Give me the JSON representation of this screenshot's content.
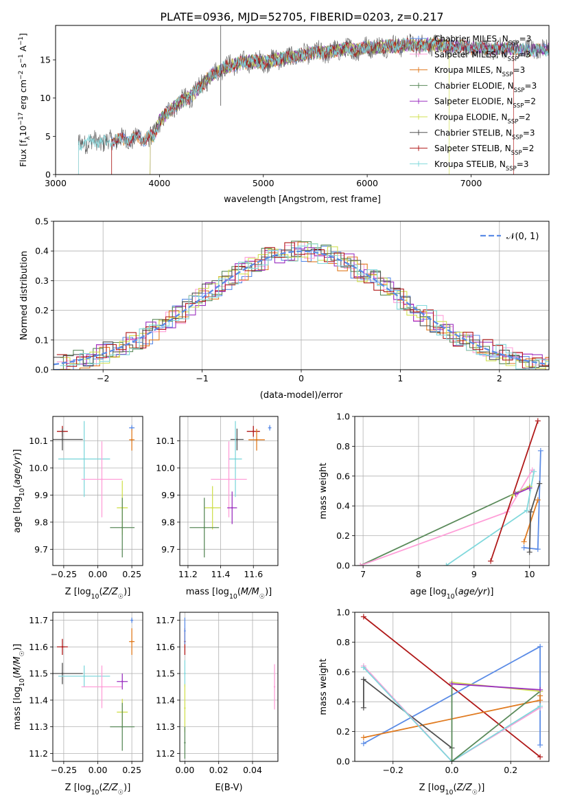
{
  "figure_title": "PLATE=0936, MJD=52705, FIBERID=0203, z=0.217",
  "colors": {
    "chabrier_miles": "#5a8be6",
    "salpeter_miles": "#ff9ed8",
    "kroupa_miles": "#e07a1f",
    "chabrier_elodie": "#5a8a5a",
    "salpeter_elodie": "#9b30c0",
    "kroupa_elodie": "#d0e050",
    "chabrier_stelib": "#505050",
    "salpeter_stelib": "#b01818",
    "kroupa_stelib": "#80d8dc",
    "gauss": "#5a8be6",
    "grid": "#b0b0b0"
  },
  "chart_data": [
    {
      "id": "spectrum",
      "type": "line",
      "title": "",
      "xlabel": "wavelength [Angstrom, rest frame]",
      "ylabel": "Flux [f_λ10^-17 erg cm^-2 s^-1 A^-1]",
      "xlim": [
        3000,
        7750
      ],
      "ylim": [
        0,
        19.5
      ],
      "xticks": [
        3000,
        4000,
        5000,
        6000,
        7000
      ],
      "yticks": [
        0,
        5,
        10,
        15
      ],
      "grid": false,
      "legend_position": "top-right",
      "legend": [
        {
          "label": "Chabrier MILES, N_SSP=3",
          "base": "Chabrier MILES, N",
          "sub": "SSP",
          "tail": "=3",
          "color_key": "chabrier_miles"
        },
        {
          "label": "Salpeter MILES, N_SSP=3",
          "base": "Salpeter MILES, N",
          "sub": "SSP",
          "tail": "=3",
          "color_key": "salpeter_miles"
        },
        {
          "label": "Kroupa MILES, N_SSP=3",
          "base": "Kroupa MILES, N",
          "sub": "SSP",
          "tail": "=3",
          "color_key": "kroupa_miles"
        },
        {
          "label": "Chabrier ELODIE, N_SSP=3",
          "base": "Chabrier ELODIE, N",
          "sub": "SSP",
          "tail": "=3",
          "color_key": "chabrier_elodie"
        },
        {
          "label": "Salpeter ELODIE, N_SSP=2",
          "base": "Salpeter ELODIE, N",
          "sub": "SSP",
          "tail": "=2",
          "color_key": "salpeter_elodie"
        },
        {
          "label": "Kroupa ELODIE, N_SSP=2",
          "base": "Kroupa ELODIE, N",
          "sub": "SSP",
          "tail": "=2",
          "color_key": "kroupa_elodie"
        },
        {
          "label": "Chabrier STELIB, N_SSP=3",
          "base": "Chabrier STELIB, N",
          "sub": "SSP",
          "tail": "=3",
          "color_key": "chabrier_stelib"
        },
        {
          "label": "Salpeter STELIB, N_SSP=2",
          "base": "Salpeter STELIB, N",
          "sub": "SSP",
          "tail": "=2",
          "color_key": "salpeter_stelib"
        },
        {
          "label": "Kroupa STELIB, N_SSP=3",
          "base": "Kroupa STELIB, N",
          "sub": "SSP",
          "tail": "=3",
          "color_key": "kroupa_stelib"
        }
      ],
      "continuum": {
        "x": [
          3220,
          3300,
          3400,
          3500,
          3560,
          3640,
          3700,
          3800,
          3850,
          3900,
          3950,
          4000,
          4100,
          4200,
          4300,
          4400,
          4500,
          4600,
          4700,
          4800,
          4900,
          5000,
          5100,
          5200,
          5300,
          5400,
          5500,
          5600,
          5700,
          5800,
          5900,
          6000,
          6100,
          6200,
          6300,
          6400,
          6500,
          6600,
          6700,
          6800,
          6900,
          7000,
          7100,
          7200,
          7300,
          7400,
          7500,
          7600,
          7750
        ],
        "y": [
          4.0,
          4.3,
          4.3,
          4.2,
          4.5,
          4.7,
          4.5,
          5.0,
          4.5,
          4.9,
          5.0,
          7.0,
          8.4,
          9.5,
          10.2,
          11.6,
          13.0,
          13.9,
          14.3,
          14.6,
          14.8,
          14.7,
          15.0,
          15.2,
          15.4,
          15.6,
          16.0,
          15.9,
          16.2,
          16.5,
          16.2,
          16.8,
          16.7,
          16.9,
          16.8,
          17.0,
          16.9,
          17.1,
          17.0,
          16.6,
          16.8,
          16.5,
          16.6,
          16.3,
          16.5,
          16.4,
          16.3,
          16.2,
          16.3
        ]
      },
      "model_start": {
        "chabrier_miles": 3540,
        "salpeter_miles": 3540,
        "kroupa_miles": 3540,
        "chabrier_elodie": 3910,
        "salpeter_elodie": 3910,
        "kroupa_elodie": 3910,
        "chabrier_stelib": 3220,
        "salpeter_stelib": 3540,
        "kroupa_stelib": 3220
      },
      "model_end": {
        "kroupa_elodie": 6790,
        "salpeter_stelib": 7410
      }
    },
    {
      "id": "residuals",
      "type": "bar",
      "xlabel": "(data-model)/error",
      "ylabel": "Normed distribution",
      "xlim": [
        -2.5,
        2.5
      ],
      "ylim": [
        0,
        0.5
      ],
      "xticks": [
        -2,
        -1,
        0,
        1,
        2
      ],
      "yticks": [
        0.0,
        0.1,
        0.2,
        0.3,
        0.4,
        0.5
      ],
      "grid": true,
      "bin_width": 0.1,
      "legend_position": "top-right",
      "legend": [
        {
          "label": "𝒩(0, 1)",
          "color_key": "gauss",
          "style": "dashed"
        }
      ],
      "gaussian": {
        "mean": 0,
        "sigma": 1
      }
    },
    {
      "id": "age_vs_Z",
      "type": "scatter",
      "xlabel": "Z [log10(Z/Z☉)]",
      "ylabel": "age  [log10(age/yr)]",
      "xlim": [
        -0.33,
        0.33
      ],
      "ylim": [
        9.64,
        10.19
      ],
      "xticks": [
        -0.25,
        0.0,
        0.25
      ],
      "xticklabels": [
        "−0.25",
        "0.00",
        "0.25"
      ],
      "yticks": [
        9.7,
        9.8,
        9.9,
        10.0,
        10.1
      ],
      "grid": true,
      "points": [
        {
          "x": -0.26,
          "y": 10.135,
          "xerr": 0.04,
          "yerr": 0.02,
          "color_key": "salpeter_stelib"
        },
        {
          "x": -0.26,
          "y": 10.105,
          "xerr": 0.15,
          "yerr": 0.04,
          "color_key": "chabrier_stelib"
        },
        {
          "x": 0.25,
          "y": 10.148,
          "xerr": 0.02,
          "yerr": 0.01,
          "color_key": "chabrier_miles"
        },
        {
          "x": 0.25,
          "y": 10.104,
          "xerr": 0.02,
          "yerr": 0.04,
          "color_key": "kroupa_miles"
        },
        {
          "x": -0.1,
          "y": 10.033,
          "xerr": 0.19,
          "yerr": 0.14,
          "color_key": "kroupa_stelib"
        },
        {
          "x": 0.03,
          "y": 9.958,
          "xerr": 0.15,
          "yerr": 0.14,
          "color_key": "salpeter_miles"
        },
        {
          "x": 0.18,
          "y": 9.853,
          "xerr": 0.04,
          "yerr": 0.1,
          "color_key": "kroupa_elodie"
        },
        {
          "x": 0.18,
          "y": 9.78,
          "xerr": 0.09,
          "yerr": 0.11,
          "color_key": "chabrier_elodie"
        }
      ]
    },
    {
      "id": "age_vs_mass",
      "type": "scatter",
      "xlabel": "mass [log10(M/M☉)]",
      "ylabel": "",
      "xlim": [
        11.15,
        11.75
      ],
      "ylim": [
        9.64,
        10.19
      ],
      "xticks": [
        11.2,
        11.4,
        11.6
      ],
      "yticks": [
        9.7,
        9.8,
        9.9,
        10.0,
        10.1
      ],
      "grid": true,
      "points": [
        {
          "x": 11.6,
          "y": 10.135,
          "xerr": 0.04,
          "yerr": 0.02,
          "color_key": "salpeter_stelib"
        },
        {
          "x": 11.5,
          "y": 10.105,
          "xerr": 0.04,
          "yerr": 0.04,
          "color_key": "chabrier_stelib"
        },
        {
          "x": 11.7,
          "y": 10.148,
          "xerr": 0.01,
          "yerr": 0.01,
          "color_key": "chabrier_miles"
        },
        {
          "x": 11.62,
          "y": 10.104,
          "xerr": 0.05,
          "yerr": 0.04,
          "color_key": "kroupa_miles"
        },
        {
          "x": 11.49,
          "y": 10.033,
          "xerr": 0.04,
          "yerr": 0.14,
          "color_key": "kroupa_stelib"
        },
        {
          "x": 11.45,
          "y": 9.958,
          "xerr": 0.11,
          "yerr": 0.14,
          "color_key": "salpeter_miles"
        },
        {
          "x": 11.47,
          "y": 9.853,
          "xerr": 0.03,
          "yerr": 0.06,
          "color_key": "salpeter_elodie"
        },
        {
          "x": 11.35,
          "y": 9.853,
          "xerr": 0.05,
          "yerr": 0.08,
          "color_key": "kroupa_elodie"
        },
        {
          "x": 11.3,
          "y": 9.78,
          "xerr": 0.09,
          "yerr": 0.11,
          "color_key": "chabrier_elodie"
        }
      ]
    },
    {
      "id": "mass_weight_vs_age",
      "type": "line",
      "xlabel": "age  [log10(age/yr)]",
      "ylabel": "mass weight",
      "xlim": [
        6.85,
        10.35
      ],
      "ylim": [
        0.0,
        1.0
      ],
      "xticks": [
        7,
        8,
        9,
        10
      ],
      "yticks": [
        0.0,
        0.2,
        0.4,
        0.6,
        0.8,
        1.0
      ],
      "grid": true,
      "series": [
        {
          "color_key": "chabrier_elodie",
          "x": [
            6.95,
            10.0
          ],
          "y": [
            0.0,
            0.53
          ]
        },
        {
          "color_key": "salpeter_miles",
          "x": [
            6.95,
            9.6,
            10.05
          ],
          "y": [
            0.0,
            0.36,
            0.64
          ]
        },
        {
          "color_key": "kroupa_stelib",
          "x": [
            8.5,
            9.95,
            10.08
          ],
          "y": [
            0.0,
            0.37,
            0.63
          ]
        },
        {
          "color_key": "salpeter_stelib",
          "x": [
            9.3,
            10.15
          ],
          "y": [
            0.03,
            0.97
          ]
        },
        {
          "color_key": "chabrier_miles",
          "x": [
            9.9,
            10.15,
            10.2
          ],
          "y": [
            0.12,
            0.11,
            0.77
          ]
        },
        {
          "color_key": "kroupa_miles",
          "x": [
            9.9,
            10.15
          ],
          "y": [
            0.16,
            0.44
          ]
        },
        {
          "color_key": "chabrier_stelib",
          "x": [
            10.0,
            10.02,
            10.18
          ],
          "y": [
            0.09,
            0.36,
            0.55
          ]
        },
        {
          "color_key": "kroupa_elodie",
          "x": [
            9.7,
            10.0
          ],
          "y": [
            0.47,
            0.53
          ]
        },
        {
          "color_key": "salpeter_elodie",
          "x": [
            9.75,
            10.0
          ],
          "y": [
            0.48,
            0.52
          ]
        }
      ]
    },
    {
      "id": "mass_vs_Z",
      "type": "scatter",
      "xlabel": "Z [log10(Z/Z☉)]",
      "ylabel": "mass [log10(M/M☉)]",
      "xlim": [
        -0.33,
        0.33
      ],
      "ylim": [
        11.17,
        11.73
      ],
      "xticks": [
        -0.25,
        0.0,
        0.25
      ],
      "xticklabels": [
        "−0.25",
        "0.00",
        "0.25"
      ],
      "yticks": [
        11.2,
        11.3,
        11.4,
        11.5,
        11.6,
        11.7
      ],
      "grid": true,
      "points": [
        {
          "x": -0.26,
          "y": 11.6,
          "xerr": 0.04,
          "yerr": 0.03,
          "color_key": "salpeter_stelib"
        },
        {
          "x": -0.26,
          "y": 11.5,
          "xerr": 0.15,
          "yerr": 0.04,
          "color_key": "chabrier_stelib"
        },
        {
          "x": 0.25,
          "y": 11.7,
          "xerr": 0.01,
          "yerr": 0.01,
          "color_key": "chabrier_miles"
        },
        {
          "x": 0.25,
          "y": 11.62,
          "xerr": 0.02,
          "yerr": 0.05,
          "color_key": "kroupa_miles"
        },
        {
          "x": -0.1,
          "y": 11.49,
          "xerr": 0.19,
          "yerr": 0.04,
          "color_key": "kroupa_stelib"
        },
        {
          "x": 0.03,
          "y": 11.45,
          "xerr": 0.15,
          "yerr": 0.08,
          "color_key": "salpeter_miles"
        },
        {
          "x": 0.18,
          "y": 11.47,
          "xerr": 0.04,
          "yerr": 0.03,
          "color_key": "salpeter_elodie"
        },
        {
          "x": 0.18,
          "y": 11.355,
          "xerr": 0.04,
          "yerr": 0.05,
          "color_key": "kroupa_elodie"
        },
        {
          "x": 0.18,
          "y": 11.3,
          "xerr": 0.09,
          "yerr": 0.09,
          "color_key": "chabrier_elodie"
        }
      ]
    },
    {
      "id": "mass_vs_ebv",
      "type": "scatter",
      "xlabel": "E(B-V)",
      "ylabel": "",
      "xlim": [
        -0.003,
        0.055
      ],
      "ylim": [
        11.17,
        11.73
      ],
      "xticks": [
        0.0,
        0.02,
        0.04
      ],
      "xticklabels": [
        "0.00",
        "0.02",
        "0.04"
      ],
      "yticks": [
        11.2,
        11.3,
        11.4,
        11.5,
        11.6,
        11.7
      ],
      "grid": true,
      "points": [
        {
          "x": 0.0,
          "y": 11.62,
          "xerr": 0,
          "yerr": 0.05,
          "color_key": "salpeter_stelib"
        },
        {
          "x": 0.0,
          "y": 11.5,
          "xerr": 0,
          "yerr": 0.05,
          "color_key": "kroupa_stelib"
        },
        {
          "x": 0.0,
          "y": 11.66,
          "xerr": 0,
          "yerr": 0.05,
          "color_key": "chabrier_miles"
        },
        {
          "x": 0.0,
          "y": 11.37,
          "xerr": 0,
          "yerr": 0.09,
          "color_key": "kroupa_elodie"
        },
        {
          "x": 0.0,
          "y": 11.24,
          "xerr": 0,
          "yerr": 0.06,
          "color_key": "chabrier_elodie"
        },
        {
          "x": 0.053,
          "y": 11.45,
          "xerr": 0,
          "yerr": 0.085,
          "color_key": "salpeter_miles"
        }
      ]
    },
    {
      "id": "mass_weight_vs_Z",
      "type": "line",
      "xlabel": "Z [log10(Z/Z☉)]",
      "ylabel": "mass weight",
      "xlim": [
        -0.33,
        0.33
      ],
      "ylim": [
        0.0,
        1.0
      ],
      "xticks": [
        -0.2,
        0.0,
        0.2
      ],
      "xticklabels": [
        "−0.2",
        "0.0",
        "0.2"
      ],
      "yticks": [
        0.0,
        0.2,
        0.4,
        0.6,
        0.8,
        1.0
      ],
      "grid": true,
      "series": [
        {
          "color_key": "salpeter_stelib",
          "x": [
            -0.3,
            0.3
          ],
          "y": [
            0.97,
            0.03
          ]
        },
        {
          "color_key": "chabrier_miles",
          "x": [
            -0.3,
            0.3,
            0.3
          ],
          "y": [
            0.12,
            0.77,
            0.11
          ]
        },
        {
          "color_key": "kroupa_miles",
          "x": [
            -0.3,
            0.3,
            0.3
          ],
          "y": [
            0.16,
            0.41,
            0.44
          ]
        },
        {
          "color_key": "chabrier_stelib",
          "x": [
            -0.3,
            -0.3,
            0.0
          ],
          "y": [
            0.36,
            0.55,
            0.09
          ]
        },
        {
          "color_key": "salpeter_miles",
          "x": [
            -0.3,
            0.0,
            0.3
          ],
          "y": [
            0.64,
            0.0,
            0.36
          ]
        },
        {
          "color_key": "kroupa_stelib",
          "x": [
            -0.3,
            0.0,
            0.3
          ],
          "y": [
            0.63,
            0.0,
            0.37
          ]
        },
        {
          "color_key": "chabrier_elodie",
          "x": [
            0.0,
            0.0,
            0.3
          ],
          "y": [
            0.53,
            0.0,
            0.47
          ]
        },
        {
          "color_key": "kroupa_elodie",
          "x": [
            0.0,
            0.3
          ],
          "y": [
            0.53,
            0.47
          ]
        },
        {
          "color_key": "salpeter_elodie",
          "x": [
            0.0,
            0.3
          ],
          "y": [
            0.52,
            0.48
          ]
        }
      ]
    }
  ]
}
